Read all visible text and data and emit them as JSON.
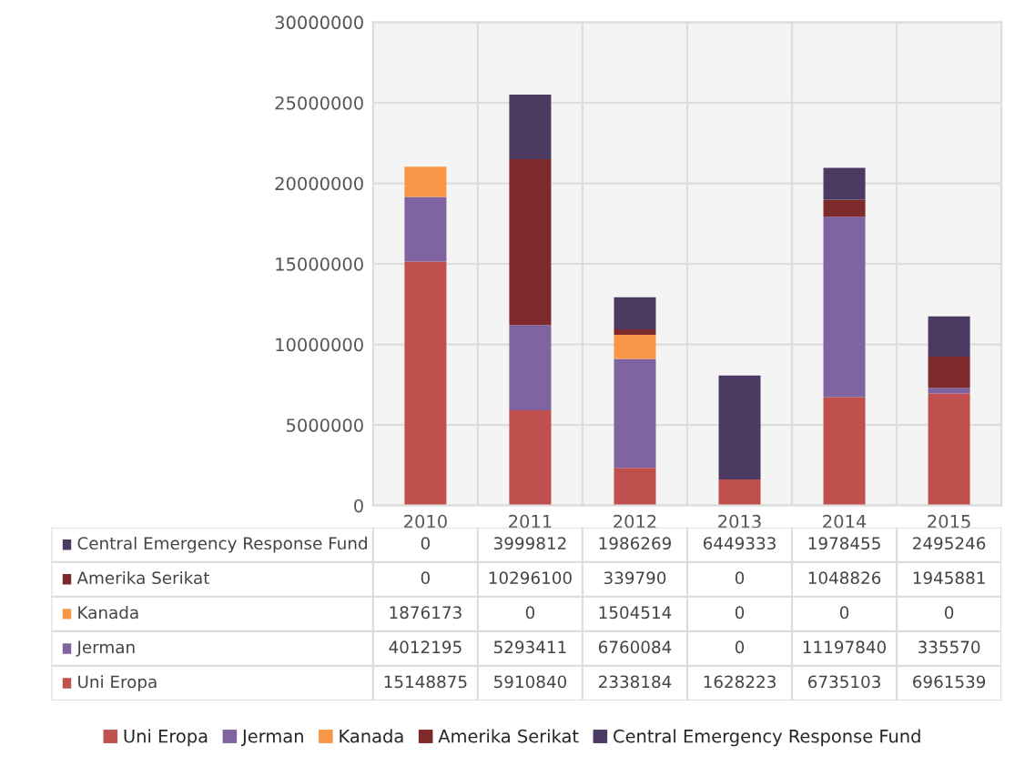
{
  "chart_data": {
    "type": "bar",
    "stacked": true,
    "categories": [
      "2010",
      "2011",
      "2012",
      "2013",
      "2014",
      "2015"
    ],
    "series": [
      {
        "name": "Uni Eropa",
        "color": "#c0504d",
        "values": [
          15148875,
          5910840,
          2338184,
          1628223,
          6735103,
          6961539
        ]
      },
      {
        "name": "Jerman",
        "color": "#8064a2",
        "values": [
          4012195,
          5293411,
          6760084,
          0,
          11197840,
          335570
        ]
      },
      {
        "name": "Kanada",
        "color": "#f79646",
        "values": [
          1876173,
          0,
          1504514,
          0,
          0,
          0
        ]
      },
      {
        "name": "Amerika Serikat",
        "color": "#7f2a2a",
        "values": [
          0,
          10296100,
          339790,
          0,
          1048826,
          1945881
        ]
      },
      {
        "name": "Central Emergency Response Fund",
        "color": "#4b3b63",
        "values": [
          0,
          3999812,
          1986269,
          6449333,
          1978455,
          2495246
        ]
      }
    ],
    "ylim": [
      0,
      30000000
    ],
    "yticks": [
      0,
      5000000,
      10000000,
      15000000,
      20000000,
      25000000,
      30000000
    ],
    "grid": "y",
    "legend": "bottom",
    "data_labels": true
  }
}
